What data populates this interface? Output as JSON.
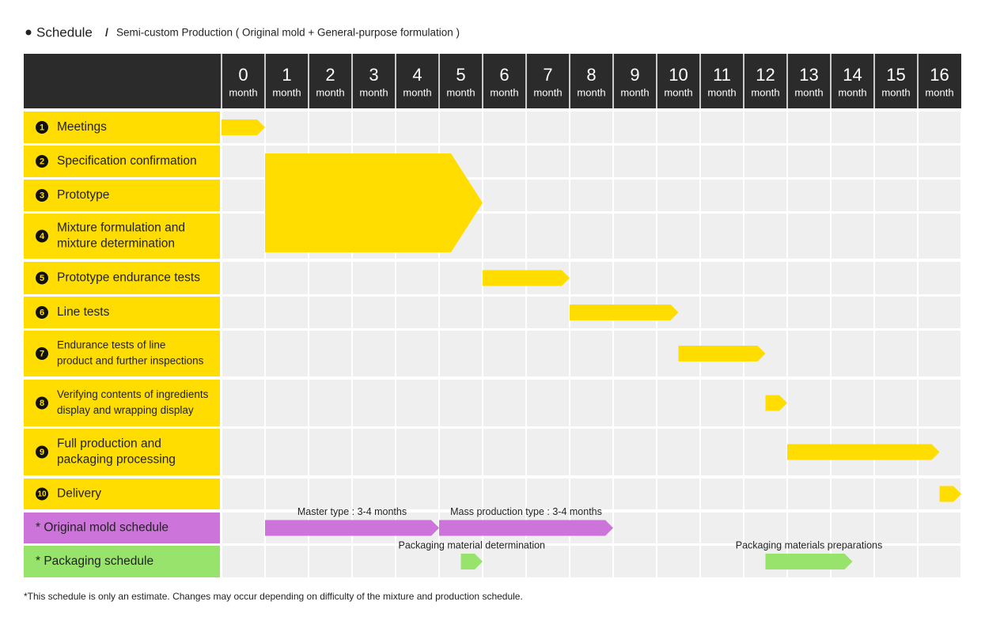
{
  "chart_data": {
    "type": "gantt",
    "title": "Schedule",
    "title_separator": "/",
    "subtitle": "Semi-custom Production ( Original mold + General-purpose formulation )",
    "x_unit": "month",
    "xlim": [
      0,
      17
    ],
    "xticks": [
      0,
      1,
      2,
      3,
      4,
      5,
      6,
      7,
      8,
      9,
      10,
      11,
      12,
      13,
      14,
      15,
      16
    ],
    "rows": [
      {
        "number": 1,
        "label": [
          "Meetings"
        ],
        "color": "#ffdd00",
        "bars": [
          {
            "start": 0,
            "end": 1
          }
        ]
      },
      {
        "number": 2,
        "label": [
          "Specification confirmation"
        ],
        "color": "#ffdd00",
        "bars": [
          {
            "start": 1,
            "end": 6,
            "rows": 3
          }
        ]
      },
      {
        "number": 3,
        "label": [
          "Prototype"
        ],
        "color": "#ffdd00",
        "bars": []
      },
      {
        "number": 4,
        "label": [
          "Mixture formulation and",
          "mixture determination"
        ],
        "color": "#ffdd00",
        "bars": []
      },
      {
        "number": 5,
        "label": [
          "Prototype endurance tests"
        ],
        "color": "#ffdd00",
        "bars": [
          {
            "start": 6,
            "end": 8
          }
        ]
      },
      {
        "number": 6,
        "label": [
          "Line tests"
        ],
        "color": "#ffdd00",
        "bars": [
          {
            "start": 8,
            "end": 10.5
          }
        ]
      },
      {
        "number": 7,
        "label": [
          "Endurance tests of line",
          "product and further inspections"
        ],
        "color": "#ffdd00",
        "bars": [
          {
            "start": 10.5,
            "end": 12.5
          }
        ]
      },
      {
        "number": 8,
        "label": [
          "Verifying contents of ingredients",
          "display and wrapping display"
        ],
        "color": "#ffdd00",
        "bars": [
          {
            "start": 12.5,
            "end": 13
          }
        ]
      },
      {
        "number": 9,
        "label": [
          "Full production and",
          "packaging processing"
        ],
        "color": "#ffdd00",
        "bars": [
          {
            "start": 13,
            "end": 16.5
          }
        ]
      },
      {
        "number": 10,
        "label": [
          "Delivery"
        ],
        "color": "#ffdd00",
        "bars": [
          {
            "start": 16.5,
            "end": 17
          }
        ]
      },
      {
        "label": [
          "* Original mold  schedule"
        ],
        "color": "#cc74da",
        "bars": [
          {
            "start": 1,
            "end": 5,
            "label": "Master type : 3-4 months"
          },
          {
            "start": 5,
            "end": 9,
            "label": "Mass production type : 3-4 months"
          }
        ]
      },
      {
        "label": [
          "* Packaging schedule"
        ],
        "color": "#98e36c",
        "bars": [
          {
            "start": 5.5,
            "end": 6,
            "label": "Packaging material determination"
          },
          {
            "start": 12.5,
            "end": 14.5,
            "label": "Packaging materials preparations"
          }
        ]
      }
    ],
    "footnote": "*This schedule is only an estimate. Changes may occur depending on difficulty of the mixture and production schedule."
  }
}
